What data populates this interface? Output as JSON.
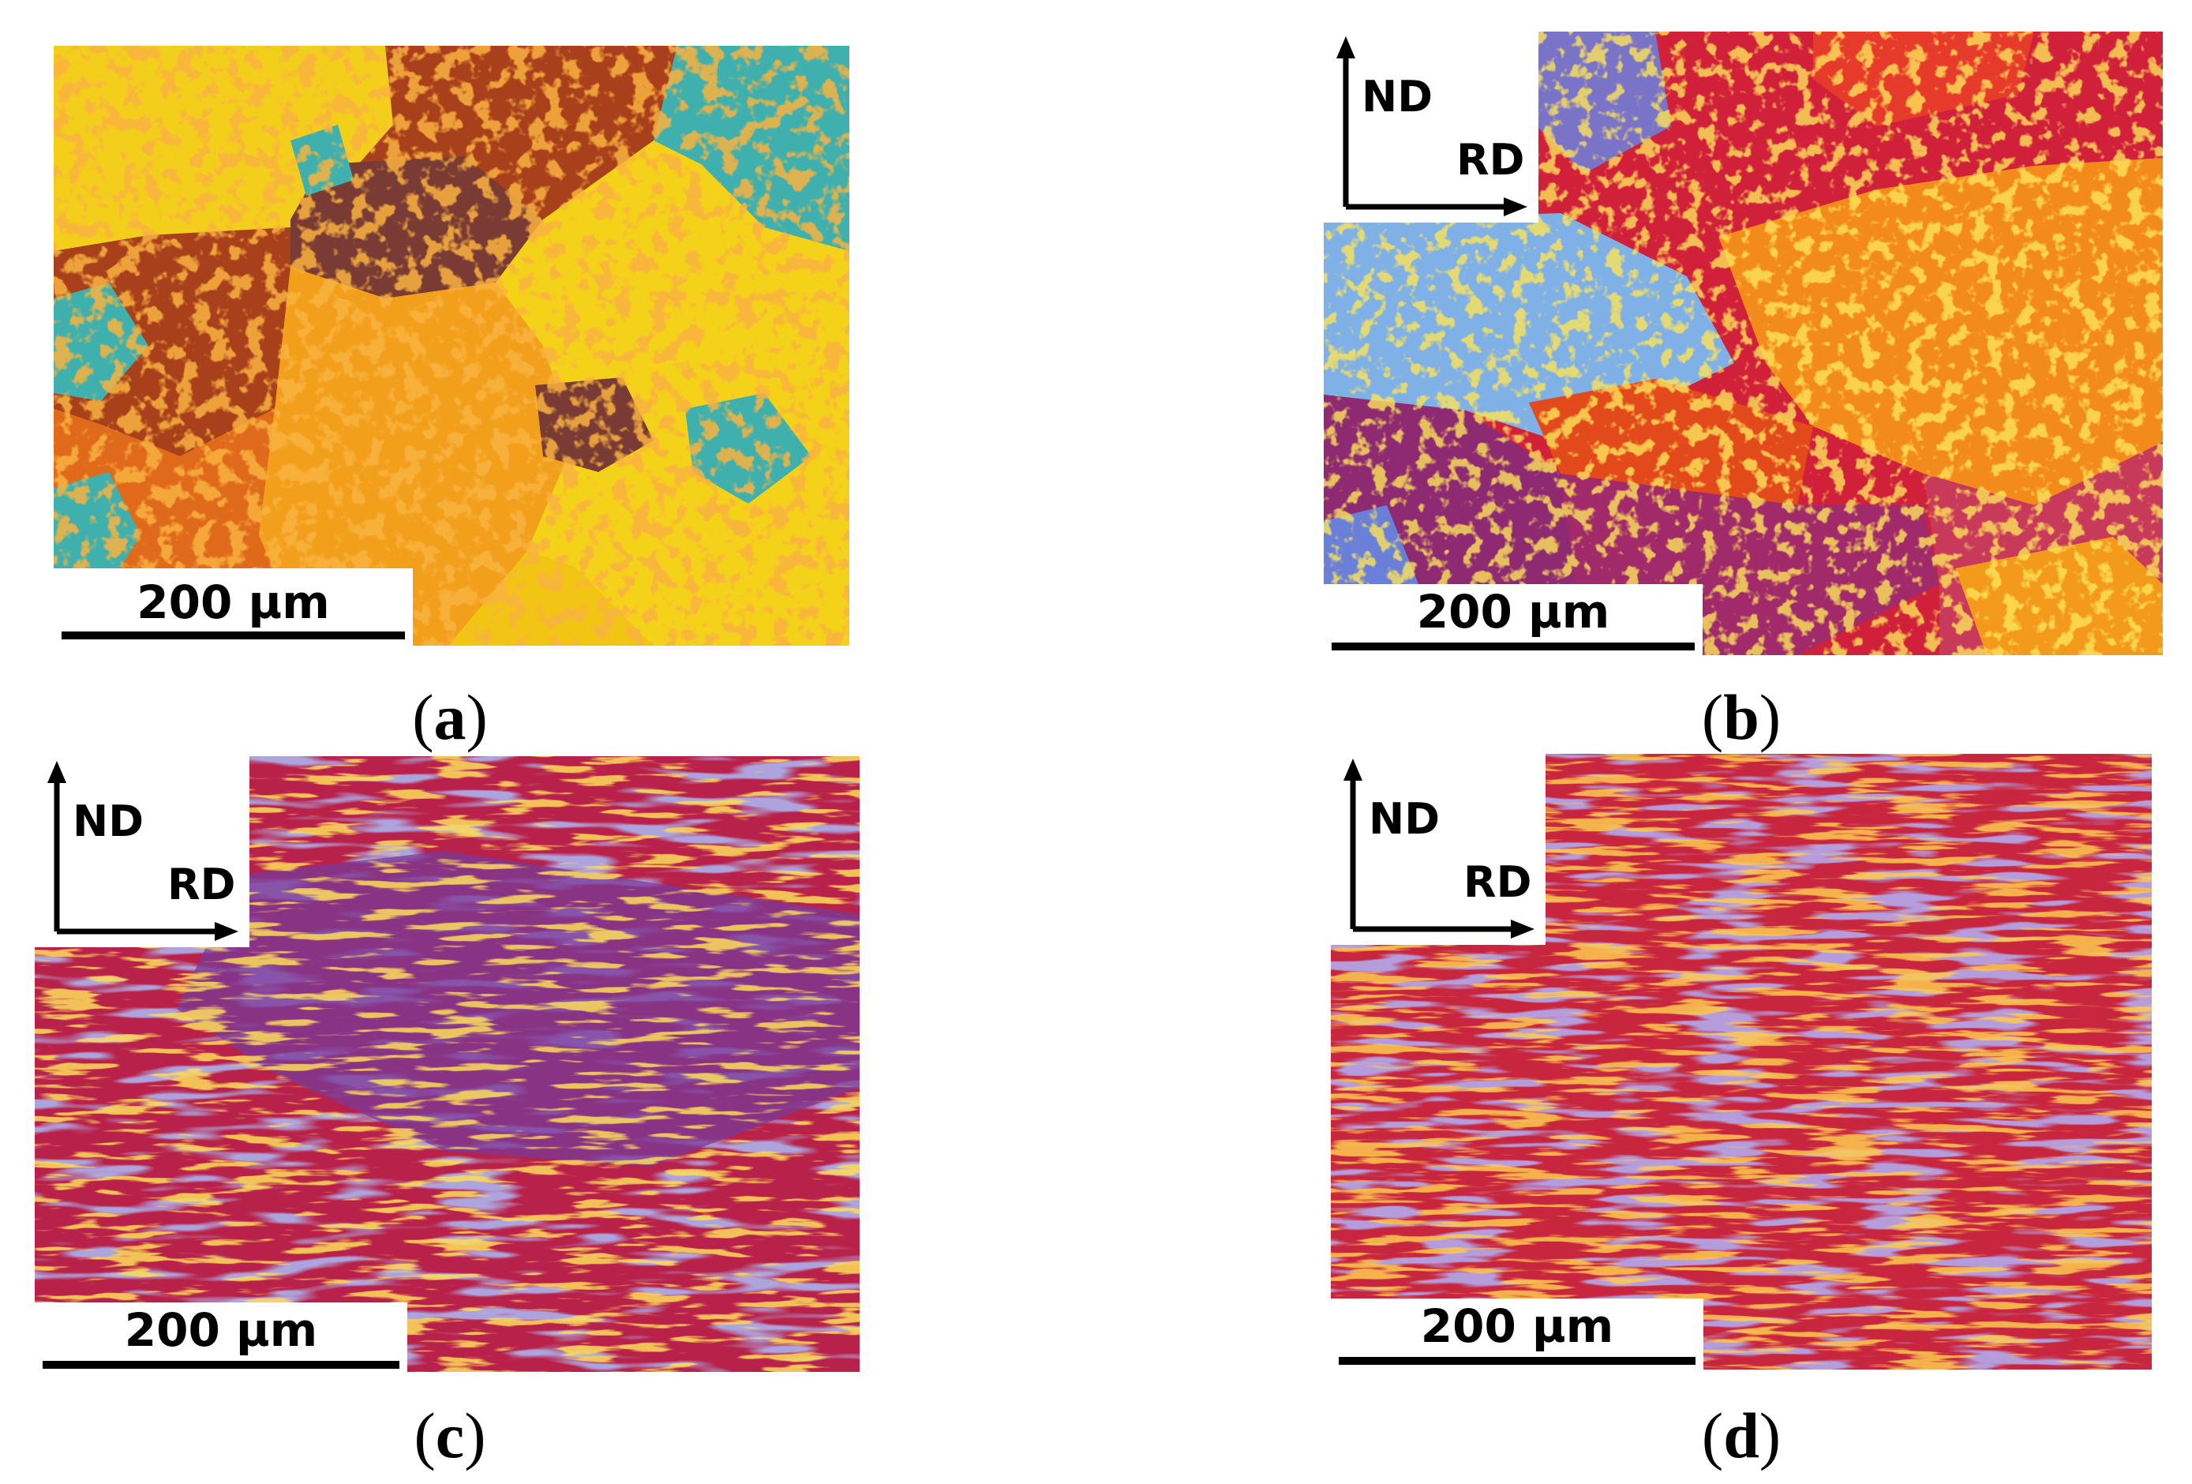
{
  "panels": [
    {
      "id": "a",
      "caption_letter": "a",
      "scale_bar": "200 µm",
      "axes": null
    },
    {
      "id": "b",
      "caption_letter": "b",
      "scale_bar": "200 µm",
      "axes": {
        "vertical": "ND",
        "horizontal": "RD"
      }
    },
    {
      "id": "c",
      "caption_letter": "c",
      "scale_bar": "200 µm",
      "axes": {
        "vertical": "ND",
        "horizontal": "RD"
      }
    },
    {
      "id": "d",
      "caption_letter": "d",
      "scale_bar": "200 µm",
      "axes": {
        "vertical": "ND",
        "horizontal": "RD"
      }
    }
  ],
  "colors": {
    "grain_yellow": "#f6d515",
    "grain_orange": "#f08a15",
    "grain_brown": "#a8401c",
    "grain_teal": "#3fb6b0",
    "grain_red": "#d32235",
    "grain_purple": "#8a2a88",
    "grain_blue": "#6a80d8"
  }
}
